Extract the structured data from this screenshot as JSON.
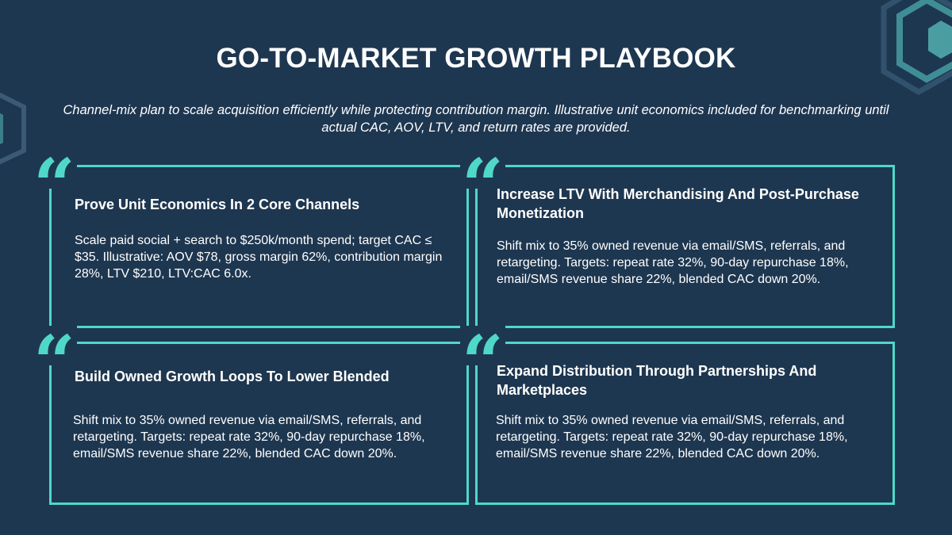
{
  "title": "GO-TO-MARKET GROWTH PLAYBOOK",
  "subtitle": "Channel-mix plan to scale acquisition efficiently while protecting contribution margin. Illustrative unit economics included for benchmarking until actual CAC, AOV, LTV, and return rates are provided.",
  "quote_mark": "“",
  "accent_color": "#4fd8c8",
  "background_color": "#1e3750",
  "cards": [
    {
      "heading": "Prove Unit Economics In 2 Core Channels",
      "body": "Scale paid social + search to $250k/month spend; target CAC ≤ $35. Illustrative: AOV $78, gross margin 62%, contribution margin 28%, LTV $210, LTV:CAC 6.0x."
    },
    {
      "heading": "Increase LTV With Merchandising And Post-Purchase Monetization",
      "body": "Shift mix to 35% owned revenue via email/SMS, referrals, and retargeting. Targets: repeat rate 32%, 90-day repurchase 18%, email/SMS revenue share 22%, blended CAC down 20%."
    },
    {
      "heading": "Build Owned Growth Loops To Lower Blended",
      "body": "Shift mix to 35% owned revenue via email/SMS, referrals, and retargeting. Targets: repeat rate 32%, 90-day repurchase 18%, email/SMS revenue share 22%, blended CAC down 20%."
    },
    {
      "heading": "Expand Distribution Through Partnerships And Marketplaces",
      "body": "Shift mix to 35% owned revenue via email/SMS, referrals, and retargeting. Targets: repeat rate 32%, 90-day repurchase 18%, email/SMS revenue share 22%, blended CAC down 20%."
    }
  ]
}
